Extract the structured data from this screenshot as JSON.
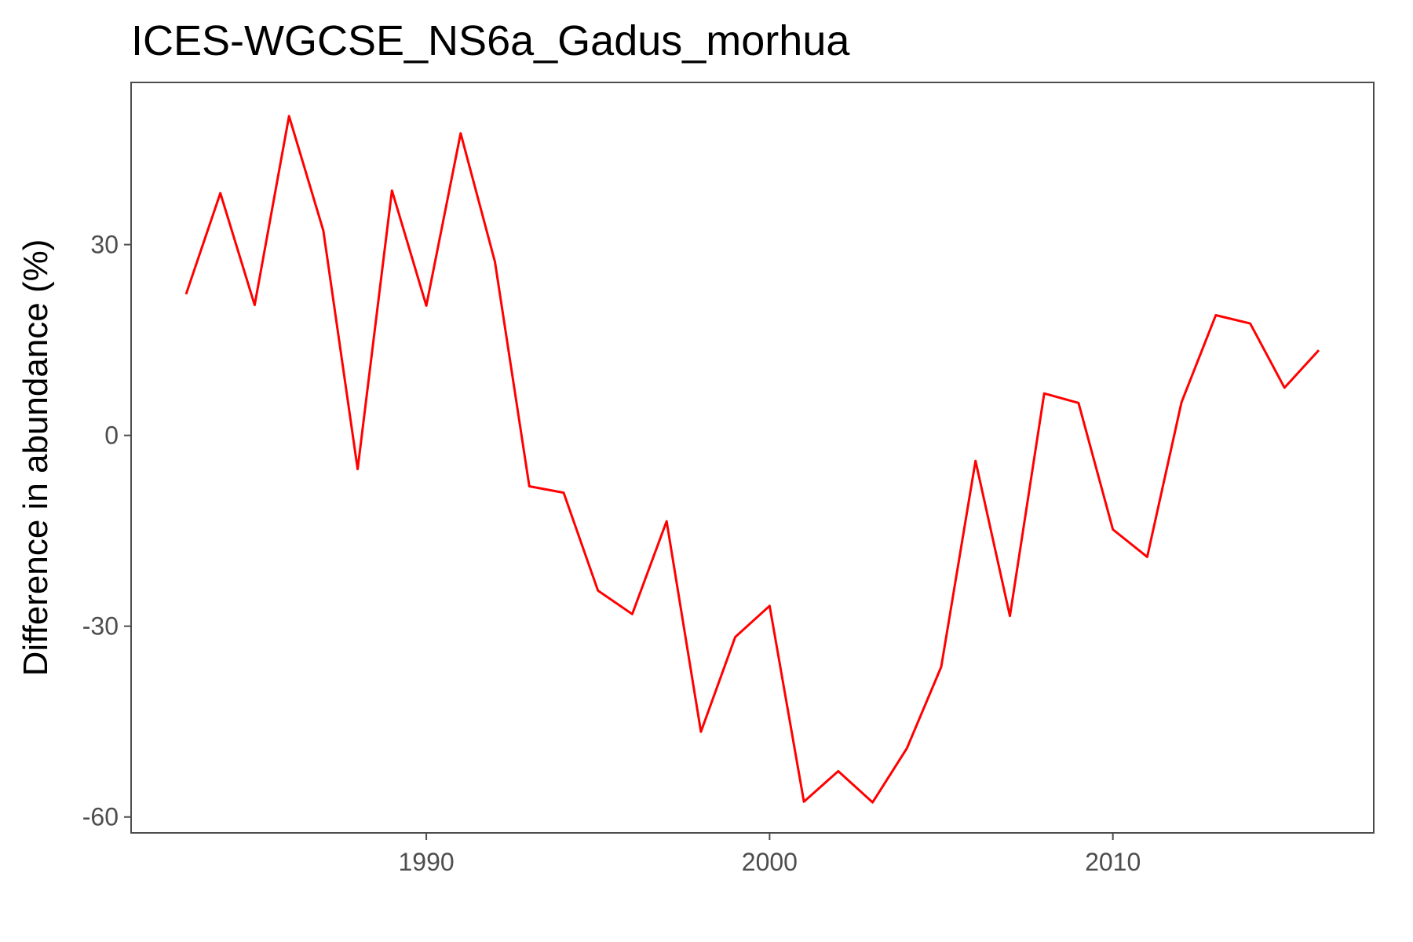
{
  "chart_data": {
    "type": "line",
    "title": "ICES-WGCSE_NS6a_Gadus_morhua",
    "xlabel": "",
    "ylabel": "Difference in abundance (%)",
    "xlim": [
      1981.4,
      2017.6
    ],
    "ylim": [
      -62.5,
      55.5
    ],
    "xticks": [
      1990,
      2000,
      2010
    ],
    "yticks": [
      30,
      0,
      -30,
      -60
    ],
    "grid": false,
    "legend": "none",
    "line_color": "#ff0000",
    "series": [
      {
        "x": [
          1983,
          1984,
          1985,
          1986,
          1987,
          1988,
          1989,
          1990,
          1991,
          1992,
          1993,
          1994,
          1995,
          1996,
          1997,
          1998,
          1999,
          2000,
          2001,
          2002,
          2003,
          2004,
          2005,
          2006,
          2007,
          2008,
          2009,
          2010,
          2011,
          2012,
          2013,
          2014,
          2015,
          2016
        ],
        "values": [
          22.2,
          38.1,
          20.5,
          50.2,
          32.2,
          -5.3,
          38.5,
          20.4,
          47.5,
          27.3,
          -8.0,
          -9.0,
          -24.4,
          -28.1,
          -13.5,
          -46.6,
          -31.7,
          -26.8,
          -57.6,
          -52.8,
          -57.7,
          -49.2,
          -36.4,
          -4.0,
          -28.4,
          6.6,
          5.1,
          -14.8,
          -19.1,
          5.2,
          18.9,
          17.6,
          7.5,
          13.4
        ]
      }
    ]
  }
}
